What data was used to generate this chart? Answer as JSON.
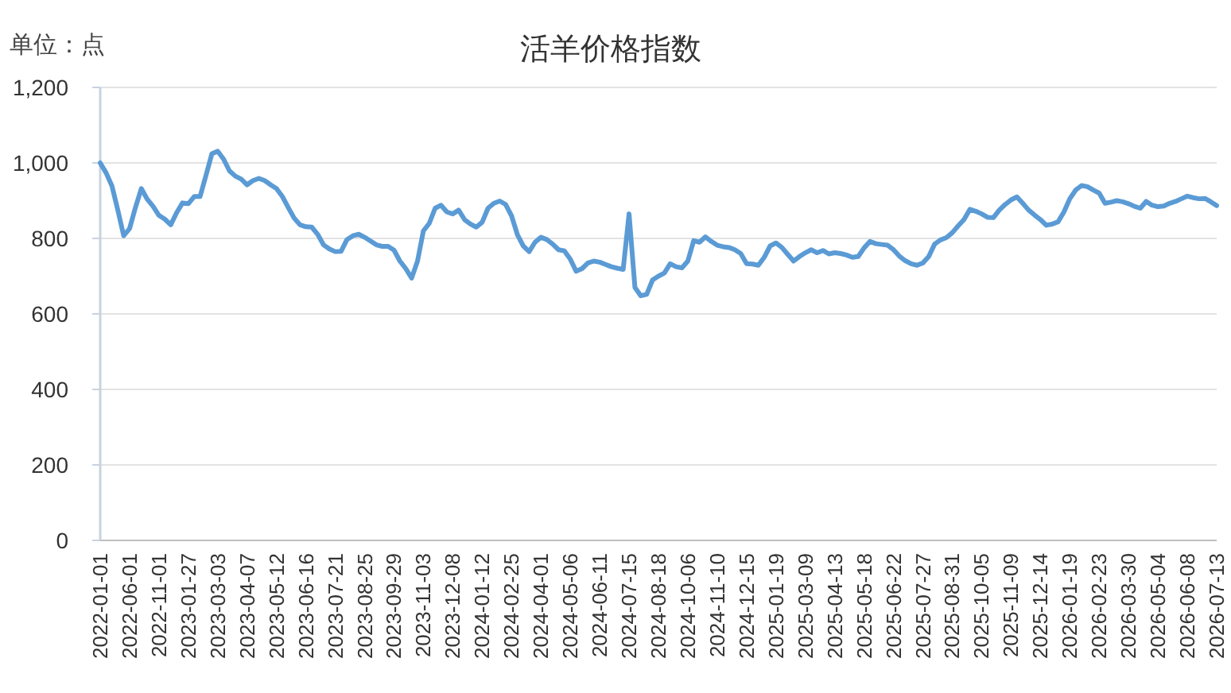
{
  "chart_data": {
    "type": "line",
    "title": "活羊价格指数",
    "ylabel": "单位：点",
    "categories": [
      "2022-01-01",
      null,
      null,
      null,
      null,
      "2022-06-01",
      null,
      null,
      null,
      null,
      "2022-11-01",
      null,
      null,
      null,
      null,
      "2023-01-27",
      null,
      null,
      null,
      null,
      "2023-03-03",
      null,
      null,
      null,
      null,
      "2023-04-07",
      null,
      null,
      null,
      null,
      "2023-05-12",
      null,
      null,
      null,
      null,
      "2023-06-16",
      null,
      null,
      null,
      null,
      "2023-07-21",
      null,
      null,
      null,
      null,
      "2023-08-25",
      null,
      null,
      null,
      null,
      "2023-09-29",
      null,
      null,
      null,
      null,
      "2023-11-03",
      null,
      null,
      null,
      null,
      "2023-12-08",
      null,
      null,
      null,
      null,
      "2024-01-12",
      null,
      null,
      null,
      null,
      "2024-02-25",
      null,
      null,
      null,
      null,
      "2024-04-01",
      null,
      null,
      null,
      null,
      "2024-05-06",
      null,
      null,
      null,
      null,
      "2024-06-11",
      null,
      null,
      null,
      null,
      "2024-07-15",
      null,
      null,
      null,
      null,
      "2024-08-18",
      null,
      null,
      null,
      null,
      "2024-10-06",
      null,
      null,
      null,
      null,
      "2024-11-10",
      null,
      null,
      null,
      null,
      "2024-12-15",
      null,
      null,
      null,
      null,
      "2025-01-19",
      null,
      null,
      null,
      null,
      "2025-03-09",
      null,
      null,
      null,
      null,
      "2025-04-13",
      null,
      null,
      null,
      null,
      "2025-05-18",
      null,
      null,
      null,
      null,
      "2025-06-22",
      null,
      null,
      null,
      null,
      "2025-07-27",
      null,
      null,
      null,
      null,
      "2025-08-31",
      null,
      null,
      null,
      null,
      "2025-10-05",
      null,
      null,
      null,
      null,
      "2025-11-09",
      null,
      null,
      null,
      null,
      "2025-12-14",
      null,
      null,
      null,
      null,
      "2026-01-19",
      null,
      null,
      null,
      null,
      "2026-02-23",
      null,
      null,
      null,
      null,
      "2026-03-30",
      null,
      null,
      null,
      null,
      "2026-05-04",
      null,
      null,
      null,
      null,
      "2026-06-08",
      null,
      null,
      null,
      null,
      "2026-07-13"
    ],
    "series": [
      {
        "color": "#5b9bd5",
        "values": [
          1000,
          974,
          939,
          875,
          807,
          826,
          882,
          932,
          904,
          885,
          861,
          851,
          836,
          868,
          894,
          892,
          911,
          911,
          967,
          1024,
          1031,
          1010,
          979,
          965,
          957,
          942,
          953,
          959,
          953,
          942,
          932,
          911,
          882,
          854,
          836,
          831,
          830,
          811,
          783,
          772,
          765,
          766,
          797,
          807,
          811,
          803,
          793,
          783,
          779,
          779,
          769,
          740,
          720,
          695,
          740,
          820,
          840,
          880,
          888,
          870,
          865,
          875,
          850,
          838,
          830,
          843,
          880,
          893,
          899,
          890,
          860,
          810,
          780,
          765,
          790,
          803,
          797,
          785,
          770,
          767,
          745,
          713,
          720,
          735,
          740,
          737,
          731,
          725,
          721,
          718,
          865,
          670,
          648,
          652,
          690,
          700,
          708,
          733,
          725,
          722,
          740,
          794,
          790,
          804,
          792,
          782,
          778,
          776,
          770,
          760,
          733,
          732,
          729,
          750,
          780,
          788,
          776,
          758,
          740,
          752,
          762,
          770,
          762,
          768,
          759,
          762,
          760,
          756,
          750,
          752,
          775,
          792,
          786,
          784,
          782,
          770,
          753,
          741,
          733,
          729,
          735,
          752,
          785,
          796,
          802,
          815,
          833,
          850,
          877,
          872,
          865,
          856,
          855,
          875,
          890,
          902,
          910,
          893,
          875,
          862,
          850,
          835,
          838,
          844,
          870,
          905,
          928,
          940,
          937,
          928,
          920,
          893,
          896,
          900,
          897,
          892,
          885,
          880,
          898,
          888,
          884,
          886,
          893,
          898,
          905,
          912,
          908,
          905,
          906,
          897,
          887
        ]
      }
    ],
    "ylim": [
      0,
      1200
    ],
    "yticks": [
      0,
      200,
      400,
      600,
      800,
      {
        "value": 1000,
        "label": "1,000"
      },
      {
        "value": 1200,
        "label": "1,200"
      }
    ],
    "grid": "y",
    "marker": "none",
    "line_style": "solid"
  }
}
